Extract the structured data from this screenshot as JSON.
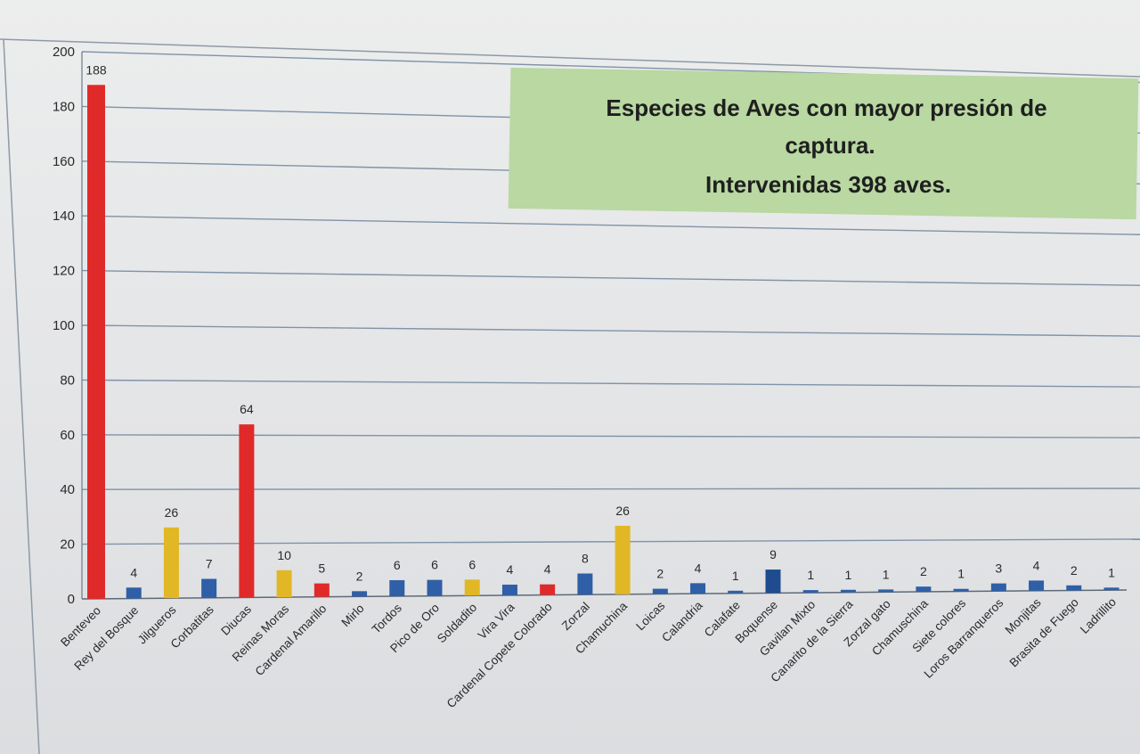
{
  "chart_data": {
    "type": "bar",
    "title": [
      "Especies de Aves con mayor  presión de",
      "captura.",
      "Intervenidas 398 aves."
    ],
    "xlabel": "",
    "ylabel": "",
    "ylim": [
      0,
      200
    ],
    "yticks": [
      "0",
      "20",
      "40",
      "60",
      "80",
      "100",
      "120",
      "140",
      "160",
      "180",
      "200"
    ],
    "grid": true,
    "legend": "none",
    "categories": [
      "Benteveo",
      "Rey del Bosque",
      "Jilgueros",
      "Corbatitas",
      "Diucas",
      "Reinas Moras",
      "Cardenal Amarillo",
      "Mirlo",
      "Tordos",
      "Pico de Oro",
      "Soldadito",
      "Vira Vira",
      "Cardenal Copete Colorado",
      "Zorzal",
      "Chamuchina",
      "Loicas",
      "Calandria",
      "Calafate",
      "Boquense",
      "Gavilan Mixto",
      "Canarito de la Sierra",
      "Zorzal gato",
      "Chamuschina",
      "Siete colores",
      "Loros Barranqueros",
      "Monjitas",
      "Brasita de Fuego",
      "Ladrillito"
    ],
    "values": [
      188,
      4,
      26,
      7,
      64,
      10,
      5,
      2,
      6,
      6,
      6,
      4,
      4,
      8,
      26,
      2,
      4,
      1,
      9,
      1,
      1,
      1,
      2,
      1,
      3,
      4,
      2,
      1
    ],
    "data_labels": [
      "188",
      "4",
      "26",
      "7",
      "64",
      "10",
      "5",
      "2",
      "6",
      "6",
      "6",
      "4",
      "4",
      "8",
      "26",
      "2",
      "4",
      "1",
      "9",
      "1",
      "1",
      "1",
      "2",
      "1",
      "3",
      "4",
      "2",
      "1"
    ],
    "bar_colors": [
      "#e02a2a",
      "#2f5fa6",
      "#e2b725",
      "#2f5fa6",
      "#e02a2a",
      "#e2b725",
      "#e02a2a",
      "#2f5fa6",
      "#2f5fa6",
      "#2f5fa6",
      "#e2b725",
      "#2f5fa6",
      "#e02a2a",
      "#2f5fa6",
      "#e2b725",
      "#2f5fa6",
      "#2f5fa6",
      "#2f5fa6",
      "#1f4c8f",
      "#2f5fa6",
      "#2f5fa6",
      "#2f5fa6",
      "#2f5fa6",
      "#2f5fa6",
      "#2f5fa6",
      "#2f5fa6",
      "#2f5fa6",
      "#2f5fa6"
    ],
    "colors": {
      "red": "#e02a2a",
      "blue": "#2f5fa6",
      "yellow": "#e2b725",
      "title_box": "#b7d7a0",
      "gridline": "#7f93a8"
    }
  }
}
